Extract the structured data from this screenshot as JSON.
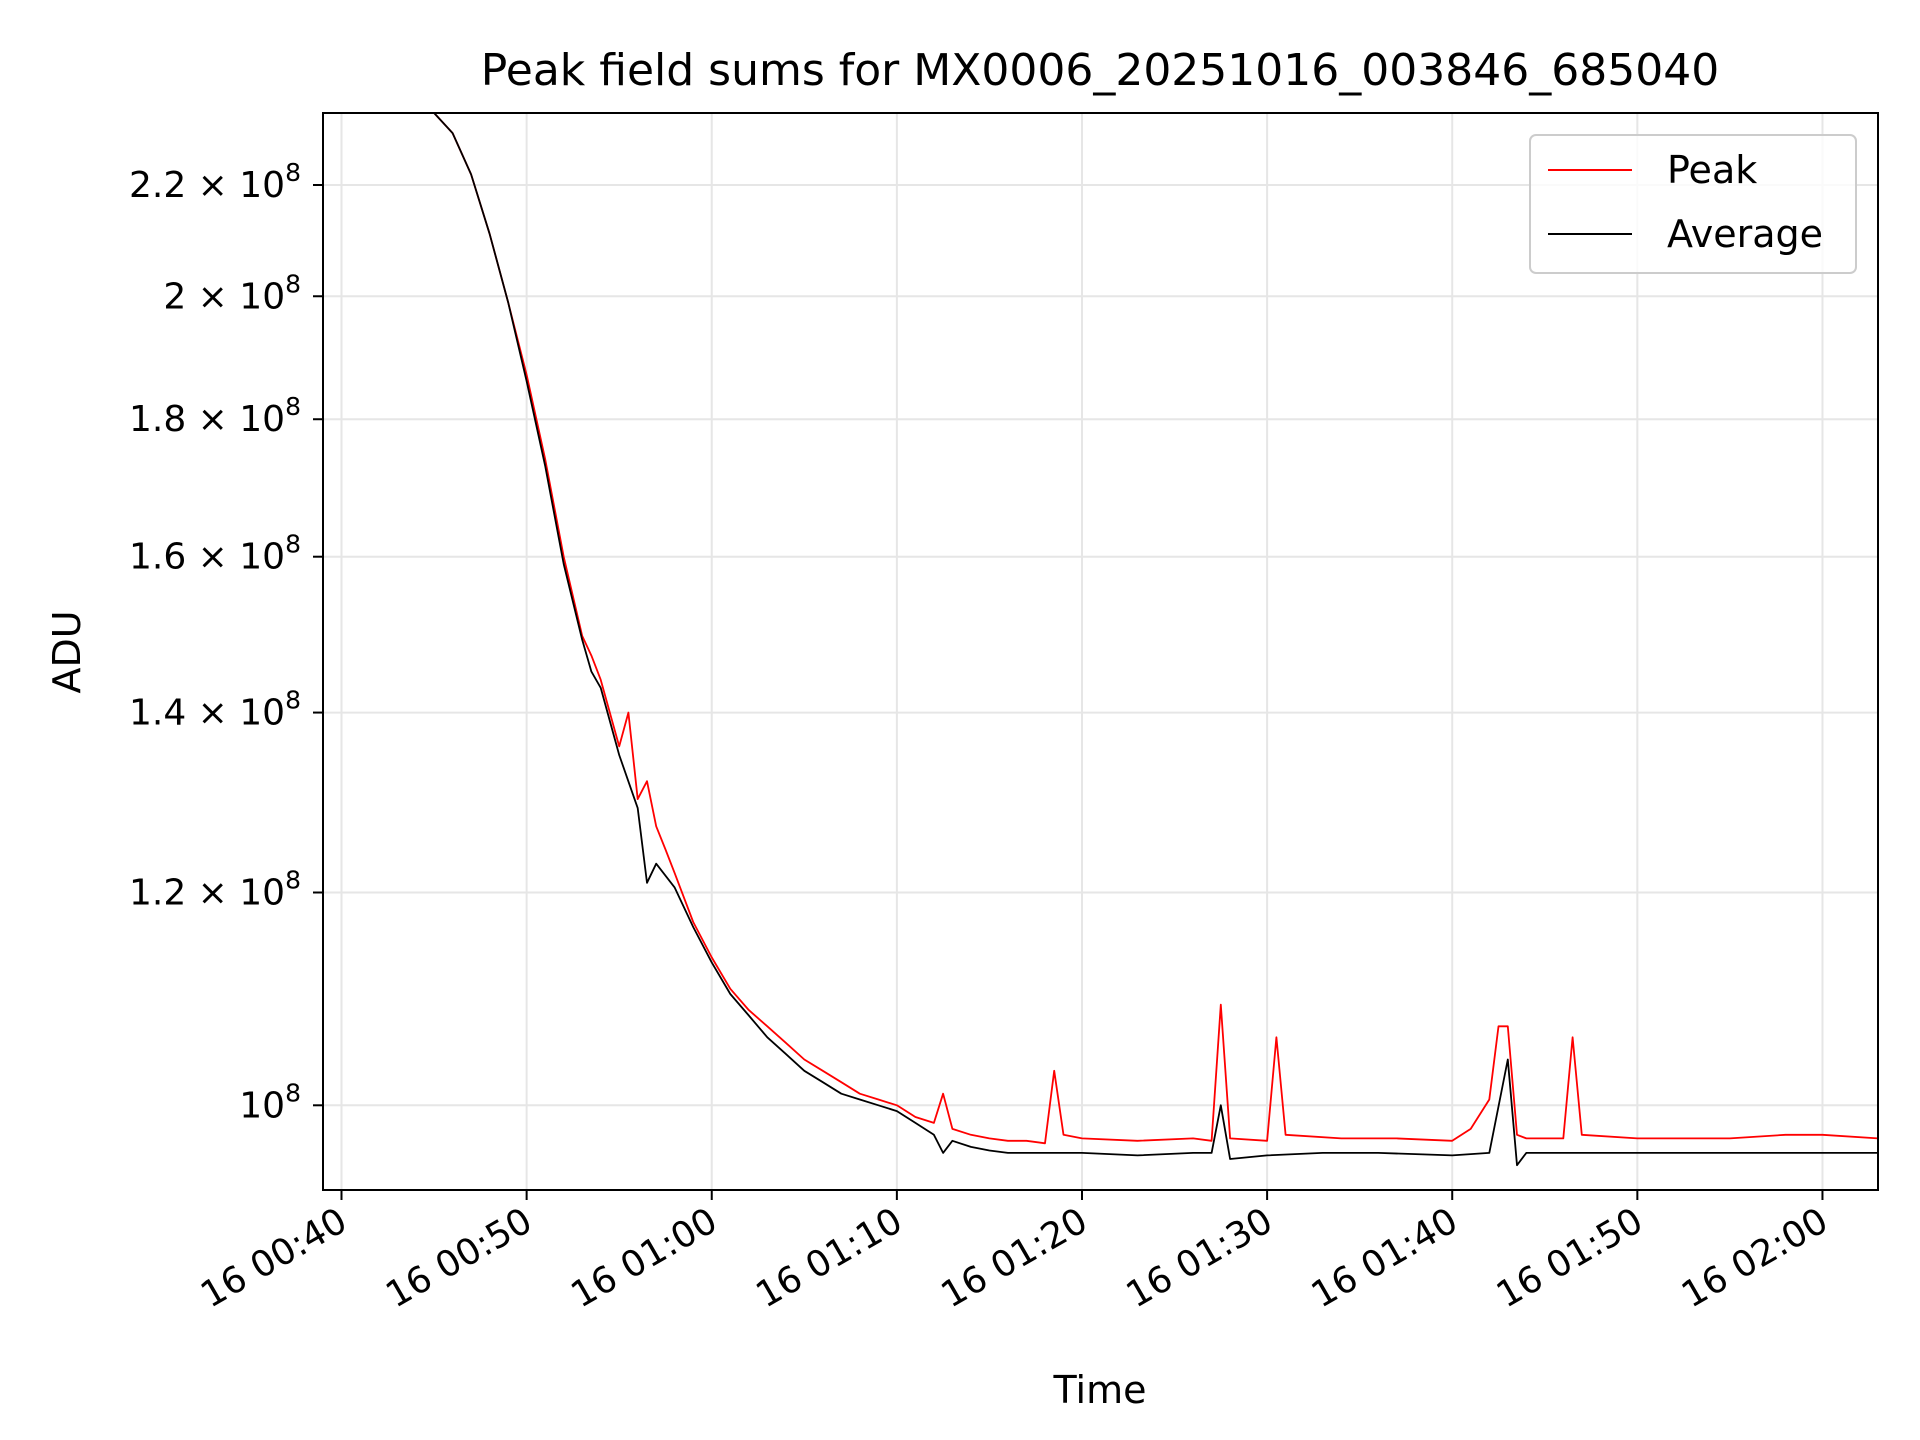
{
  "chart_data": {
    "type": "line",
    "title": "Peak field sums for MX0006_20251016_003846_685040",
    "xlabel": "Time",
    "ylabel": "ADU",
    "xlim": [
      "16 00:39",
      "16 02:03"
    ],
    "ylim": [
      93000000.0,
      234000000.0
    ],
    "yscale": "log",
    "grid": true,
    "legend_position": "top-right",
    "x_ticks": [
      "16 00:40",
      "16 00:50",
      "16 01:00",
      "16 01:10",
      "16 01:20",
      "16 01:30",
      "16 01:40",
      "16 01:50",
      "16 02:00"
    ],
    "y_ticks": [
      {
        "value": 100000000.0,
        "mantissa": "",
        "exponent": "8"
      },
      {
        "value": 120000000.0,
        "mantissa": "1.2",
        "exponent": "8"
      },
      {
        "value": 140000000.0,
        "mantissa": "1.4",
        "exponent": "8"
      },
      {
        "value": 160000000.0,
        "mantissa": "1.6",
        "exponent": "8"
      },
      {
        "value": 180000000.0,
        "mantissa": "1.8",
        "exponent": "8"
      },
      {
        "value": 200000000.0,
        "mantissa": "2",
        "exponent": "8"
      },
      {
        "value": 220000000.0,
        "mantissa": "2.2",
        "exponent": "8"
      }
    ],
    "series": [
      {
        "name": "Peak",
        "color": "#ff0000",
        "x": [
          "16 00:40",
          "16 00:45",
          "16 00:46",
          "16 00:47",
          "16 00:48",
          "16 00:49",
          "16 00:50",
          "16 00:51",
          "16 00:52",
          "16 00:53",
          "16 00:53.5",
          "16 00:54",
          "16 00:55",
          "16 00:55.5",
          "16 00:56",
          "16 00:56.5",
          "16 00:57",
          "16 00:57.5",
          "16 00:58",
          "16 00:59",
          "16 01:00",
          "16 01:01",
          "16 01:02",
          "16 01:03",
          "16 01:04",
          "16 01:05",
          "16 01:06",
          "16 01:07",
          "16 01:08",
          "16 01:09",
          "16 01:10",
          "16 01:11",
          "16 01:12",
          "16 01:12.5",
          "16 01:13",
          "16 01:14",
          "16 01:15",
          "16 01:16",
          "16 01:17",
          "16 01:18",
          "16 01:18.5",
          "16 01:19",
          "16 01:20",
          "16 01:23",
          "16 01:26",
          "16 01:27",
          "16 01:27.5",
          "16 01:28",
          "16 01:30",
          "16 01:30.5",
          "16 01:31",
          "16 01:34",
          "16 01:37",
          "16 01:40",
          "16 01:41",
          "16 01:42",
          "16 01:42.5",
          "16 01:43",
          "16 01:43.5",
          "16 01:44",
          "16 01:46",
          "16 01:46.5",
          "16 01:47",
          "16 01:50",
          "16 01:55",
          "16 01:58",
          "16 02:00",
          "16 02:03"
        ],
        "y": [
          234000000.0,
          234000000.0,
          230000000.0,
          222000000.0,
          211000000.0,
          199000000.0,
          187000000.0,
          174000000.0,
          160000000.0,
          149500000.0,
          147000000.0,
          144000000.0,
          136000000.0,
          140000000.0,
          130000000.0,
          132000000.0,
          127000000.0,
          124500000.0,
          122000000.0,
          117000000.0,
          113500000.0,
          110500000.0,
          108500000.0,
          107000000.0,
          105500000.0,
          104000000.0,
          103000000.0,
          102000000.0,
          101000000.0,
          100500000.0,
          100000000.0,
          99000000.0,
          98500000.0,
          101000000.0,
          98000000.0,
          97500000.0,
          97200000.0,
          97000000.0,
          97000000.0,
          96800000.0,
          103000000.0,
          97500000.0,
          97200000.0,
          97000000.0,
          97200000.0,
          97000000.0,
          109000000.0,
          97200000.0,
          97000000.0,
          106000000.0,
          97500000.0,
          97200000.0,
          97200000.0,
          97000000.0,
          98000000.0,
          100500000.0,
          107000000.0,
          107000000.0,
          97500000.0,
          97200000.0,
          97200000.0,
          106000000.0,
          97500000.0,
          97200000.0,
          97200000.0,
          97500000.0,
          97500000.0,
          97200000.0
        ]
      },
      {
        "name": "Average",
        "color": "#000000",
        "x": [
          "16 00:40",
          "16 00:45",
          "16 00:46",
          "16 00:47",
          "16 00:48",
          "16 00:49",
          "16 00:50",
          "16 00:51",
          "16 00:52",
          "16 00:53",
          "16 00:53.5",
          "16 00:54",
          "16 00:55",
          "16 00:56",
          "16 00:56.5",
          "16 00:57",
          "16 00:58",
          "16 00:59",
          "16 01:00",
          "16 01:01",
          "16 01:02",
          "16 01:03",
          "16 01:04",
          "16 01:05",
          "16 01:06",
          "16 01:07",
          "16 01:08",
          "16 01:09",
          "16 01:10",
          "16 01:11",
          "16 01:12",
          "16 01:12.5",
          "16 01:13",
          "16 01:14",
          "16 01:15",
          "16 01:16",
          "16 01:18",
          "16 01:20",
          "16 01:23",
          "16 01:26",
          "16 01:27",
          "16 01:27.5",
          "16 01:28",
          "16 01:30",
          "16 01:33",
          "16 01:36",
          "16 01:40",
          "16 01:42",
          "16 01:43",
          "16 01:43.5",
          "16 01:44",
          "16 01:46",
          "16 01:50",
          "16 01:55",
          "16 02:00",
          "16 02:03"
        ],
        "y": [
          234000000.0,
          234000000.0,
          230000000.0,
          222000000.0,
          211000000.0,
          199000000.0,
          186000000.0,
          173000000.0,
          159000000.0,
          149000000.0,
          145000000.0,
          143000000.0,
          135000000.0,
          129000000.0,
          121000000.0,
          123000000.0,
          120500000.0,
          116500000.0,
          113000000.0,
          110000000.0,
          108000000.0,
          106000000.0,
          104500000.0,
          103000000.0,
          102000000.0,
          101000000.0,
          100500000.0,
          100000000.0,
          99500000.0,
          98500000.0,
          97500000.0,
          96000000.0,
          97000000.0,
          96500000.0,
          96200000.0,
          96000000.0,
          96000000.0,
          96000000.0,
          95800000.0,
          96000000.0,
          96000000.0,
          100000000.0,
          95500000.0,
          95800000.0,
          96000000.0,
          96000000.0,
          95800000.0,
          96000000.0,
          104000000.0,
          95000000.0,
          96000000.0,
          96000000.0,
          96000000.0,
          96000000.0,
          96000000.0,
          96000000.0
        ]
      }
    ]
  }
}
